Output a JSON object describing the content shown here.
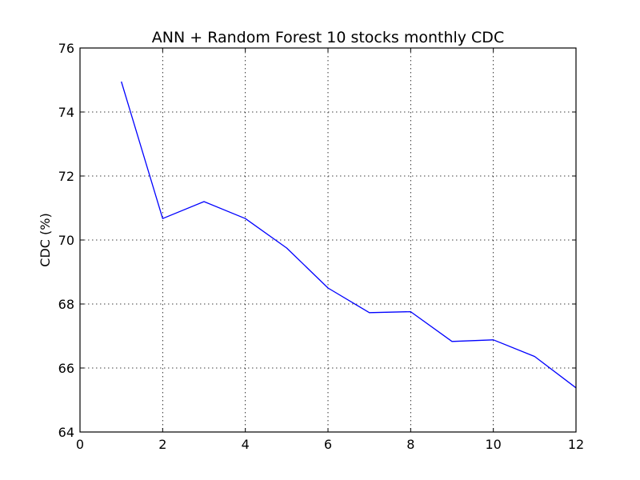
{
  "chart_data": {
    "type": "line",
    "title": "ANN + Random Forest 10 stocks monthly CDC",
    "xlabel": "",
    "ylabel": "CDC (%)",
    "xlim": [
      0,
      12
    ],
    "ylim": [
      64,
      76
    ],
    "xticks": [
      0,
      2,
      4,
      6,
      8,
      10,
      12
    ],
    "yticks": [
      64,
      66,
      68,
      70,
      72,
      74,
      76
    ],
    "grid": true,
    "series": [
      {
        "color": "#0000ff",
        "x": [
          1,
          2,
          3,
          4,
          5,
          6,
          7,
          8,
          9,
          10,
          11,
          12
        ],
        "y": [
          74.95,
          70.67,
          71.2,
          70.67,
          69.75,
          68.5,
          67.73,
          67.76,
          66.83,
          66.88,
          66.36,
          65.38
        ]
      }
    ]
  }
}
